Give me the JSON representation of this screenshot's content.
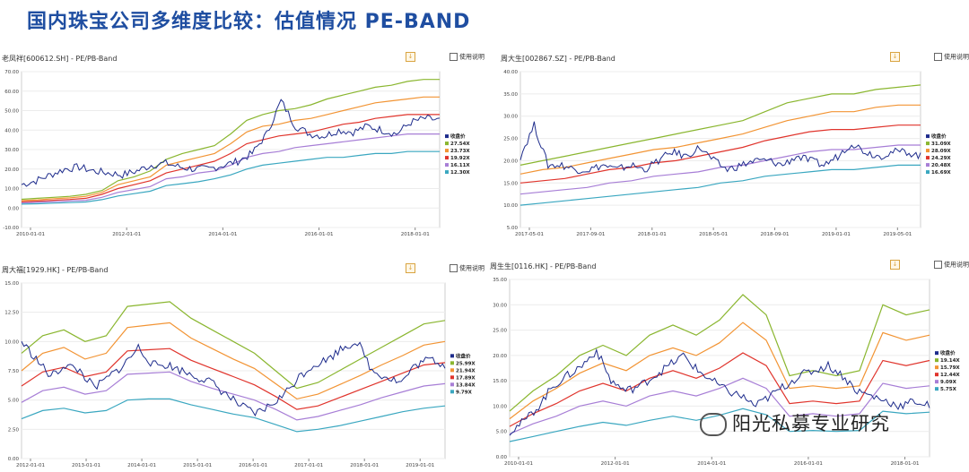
{
  "page_title": "国内珠宝公司多维度比较：估值情况 PE-BAND",
  "toolbar": {
    "download_icon": "download-icon",
    "help_label": "使用说明"
  },
  "colors": {
    "price": "#1e2c8c",
    "bands": [
      "#8ab62f",
      "#f29434",
      "#e0342c",
      "#a77ed6",
      "#3aa7c0"
    ]
  },
  "watermark": "阳光私募专业研究",
  "chart_data": [
    {
      "type": "line",
      "title": "老凤祥[600612.SH] - PE/PB-Band",
      "x_ticks": [
        "2010-01-01",
        "2012-01-01",
        "2014-01-01",
        "2016-01-01",
        "2018-01-01"
      ],
      "y_ticks": [
        "70.00",
        "60.00",
        "50.00",
        "40.00",
        "30.00",
        "20.00",
        "10.00",
        "0.00",
        "-10.00"
      ],
      "ylim": [
        -10,
        70
      ],
      "legend": [
        "收盘价",
        "27.54X",
        "23.73X",
        "19.92X",
        "16.11X",
        "12.30X"
      ],
      "bands": [
        [
          4.5,
          5,
          5.5,
          6,
          7,
          9,
          14,
          16,
          19,
          25,
          28,
          30,
          32,
          38,
          45,
          48,
          50,
          51,
          53,
          56,
          58,
          60,
          62,
          63,
          65,
          66,
          66
        ],
        [
          3.8,
          4.2,
          4.8,
          5.2,
          6,
          8,
          12,
          14,
          16,
          22,
          24,
          26,
          28,
          33,
          39,
          42,
          43,
          45,
          46,
          48,
          50,
          52,
          54,
          55,
          56,
          57,
          57
        ],
        [
          3.2,
          3.5,
          4,
          4.4,
          5,
          7,
          10,
          12,
          14,
          18,
          20,
          22,
          24,
          28,
          33,
          35,
          37,
          38,
          39,
          41,
          43,
          44,
          46,
          47,
          48,
          48,
          48
        ],
        [
          2.6,
          2.9,
          3.2,
          3.6,
          4,
          5.5,
          8,
          9.5,
          11,
          15,
          16,
          18,
          19,
          22,
          26,
          28,
          29,
          31,
          32,
          33,
          34,
          35,
          36,
          37,
          38,
          38,
          38
        ],
        [
          2,
          2.2,
          2.5,
          2.8,
          3.1,
          4.3,
          6.2,
          7.4,
          8.6,
          11.5,
          12.5,
          13.5,
          15,
          17,
          20,
          22,
          23,
          24,
          25,
          26,
          26,
          27,
          28,
          28,
          29,
          29,
          29
        ]
      ],
      "price": [
        12,
        14,
        17,
        20,
        21,
        19,
        18,
        17,
        19,
        22,
        23,
        21,
        20,
        20,
        22,
        24,
        28,
        38,
        55,
        42,
        38,
        37,
        40,
        39,
        42,
        40,
        38,
        44,
        46,
        45
      ]
    },
    {
      "type": "line",
      "title": "周大生[002867.SZ] - PE/PB-Band",
      "x_ticks": [
        "2017-05-01",
        "2017-09-01",
        "2018-01-01",
        "2018-05-01",
        "2018-09-01",
        "2019-01-01",
        "2019-05-01"
      ],
      "y_ticks": [
        "40.00",
        "35.00",
        "30.00",
        "25.00",
        "20.00",
        "15.00",
        "10.00",
        "5.00"
      ],
      "ylim": [
        5,
        40
      ],
      "legend": [
        "收盘价",
        "31.09X",
        "28.09X",
        "24.29X",
        "20.48X",
        "16.69X"
      ],
      "bands": [
        [
          19,
          20,
          21,
          22,
          23,
          24,
          25,
          26,
          27,
          28,
          29,
          31,
          33,
          34,
          35,
          35,
          36,
          36.5,
          37
        ],
        [
          17,
          18,
          18.5,
          19.5,
          20.5,
          21.5,
          22.5,
          23,
          24,
          25,
          26,
          27.5,
          29,
          30,
          31,
          31,
          32,
          32.5,
          32.5
        ],
        [
          15,
          15.5,
          16,
          17,
          18,
          18.5,
          19.5,
          20,
          21,
          22,
          23,
          24.5,
          25.5,
          26.5,
          27,
          27,
          27.5,
          28,
          28
        ],
        [
          12.5,
          13,
          13.5,
          14,
          15,
          15.5,
          16.5,
          17,
          17.5,
          18.5,
          19,
          20,
          21,
          22,
          22.5,
          22.5,
          23,
          23.5,
          23.5
        ],
        [
          10,
          10.5,
          11,
          11.5,
          12,
          12.5,
          13,
          13.5,
          14,
          15,
          15.5,
          16.5,
          17,
          17.5,
          18,
          18,
          18.5,
          19,
          19
        ]
      ],
      "price": [
        21,
        28,
        19,
        19,
        18,
        18,
        19,
        18,
        19,
        18,
        20,
        22,
        21,
        23,
        20,
        18,
        19,
        20,
        20,
        19,
        21,
        20,
        19,
        21,
        24,
        22,
        21,
        22,
        22,
        21
      ]
    },
    {
      "type": "line",
      "title": "周大福[1929.HK] - PE/PB-Band",
      "x_ticks": [
        "2012-01-01",
        "2013-01-01",
        "2014-01-01",
        "2015-01-01",
        "2016-01-01",
        "2017-01-01",
        "2018-01-01",
        "2019-01-01"
      ],
      "y_ticks": [
        "15.00",
        "12.50",
        "10.00",
        "7.50",
        "5.00",
        "2.50",
        "0.00"
      ],
      "ylim": [
        0,
        15
      ],
      "legend": [
        "收盘价",
        "25.99X",
        "21.94X",
        "17.89X",
        "13.84X",
        "9.79X"
      ],
      "bands": [
        [
          9,
          10.5,
          11,
          10,
          10.5,
          13,
          13.2,
          13.4,
          12,
          11,
          10,
          9,
          7.5,
          6,
          6.5,
          7.5,
          8.5,
          9.5,
          10.5,
          11.5,
          11.8
        ],
        [
          7.5,
          9,
          9.5,
          8.5,
          9,
          11.2,
          11.4,
          11.6,
          10.3,
          9.4,
          8.5,
          7.7,
          6.4,
          5.1,
          5.5,
          6.3,
          7.1,
          8,
          8.8,
          9.7,
          10
        ],
        [
          6.2,
          7.4,
          7.8,
          7,
          7.4,
          9.2,
          9.3,
          9.4,
          8.4,
          7.7,
          7,
          6.3,
          5.3,
          4.2,
          4.5,
          5.2,
          5.9,
          6.6,
          7.3,
          8,
          8.2
        ],
        [
          4.8,
          5.8,
          6.1,
          5.5,
          5.8,
          7.2,
          7.3,
          7.4,
          6.6,
          6,
          5.5,
          5,
          4.2,
          3.3,
          3.6,
          4.1,
          4.6,
          5.2,
          5.7,
          6.2,
          6.4
        ],
        [
          3.4,
          4.1,
          4.3,
          3.9,
          4.1,
          5,
          5.1,
          5.1,
          4.6,
          4.2,
          3.8,
          3.5,
          2.9,
          2.3,
          2.5,
          2.8,
          3.2,
          3.6,
          4,
          4.3,
          4.5
        ]
      ],
      "price": [
        10,
        8.5,
        7,
        8,
        7.5,
        6,
        7,
        8,
        9.5,
        8,
        8,
        7.5,
        7,
        6.5,
        5.5,
        4.5,
        3.8,
        4.5,
        5.5,
        7,
        8,
        8.5,
        9.5,
        10,
        7.5,
        7,
        6.5,
        8,
        8.5,
        8
      ]
    },
    {
      "type": "line",
      "title": "周生生[0116.HK] - PE/PB-Band",
      "x_ticks": [
        "2010-01-01",
        "2012-01-01",
        "2014-01-01",
        "2016-01-01",
        "2018-01-01"
      ],
      "y_ticks": [
        "35.00",
        "30.00",
        "25.00",
        "20.00",
        "15.00",
        "10.00",
        "5.00",
        "0.00"
      ],
      "ylim": [
        0,
        35
      ],
      "legend": [
        "收盘价",
        "19.14X",
        "15.79X",
        "12.44X",
        "9.09X",
        "5.75X"
      ],
      "bands": [
        [
          9,
          13,
          16,
          20,
          22,
          20,
          24,
          26,
          24,
          27,
          32,
          28,
          16,
          17,
          16,
          17,
          30,
          28,
          29
        ],
        [
          7.5,
          11,
          13.5,
          16.5,
          18.5,
          17,
          20,
          21.5,
          20,
          22.5,
          26.5,
          23,
          13.5,
          14,
          13.5,
          14,
          24.5,
          23,
          24
        ],
        [
          6,
          8.5,
          10.5,
          13,
          14.5,
          13,
          15.5,
          17,
          15.5,
          17.5,
          20.5,
          18,
          10.5,
          11,
          10.5,
          11,
          19,
          18,
          19
        ],
        [
          4.5,
          6.5,
          8,
          10,
          11,
          10,
          12,
          13,
          12,
          13.5,
          15.5,
          13.5,
          8,
          8.5,
          8,
          8.5,
          14.5,
          13.5,
          14
        ],
        [
          3,
          4,
          5,
          6,
          6.8,
          6.2,
          7.2,
          8,
          7.2,
          8.2,
          9.5,
          8.3,
          5,
          5.2,
          5,
          5.2,
          9,
          8.5,
          8.8
        ]
      ],
      "price": [
        5,
        7,
        10,
        14,
        16,
        18,
        21,
        15,
        13,
        14,
        16,
        18,
        20,
        17,
        15,
        13,
        12,
        10,
        12,
        14,
        16,
        17,
        18,
        16,
        13,
        12,
        11,
        10,
        11,
        10
      ]
    }
  ]
}
